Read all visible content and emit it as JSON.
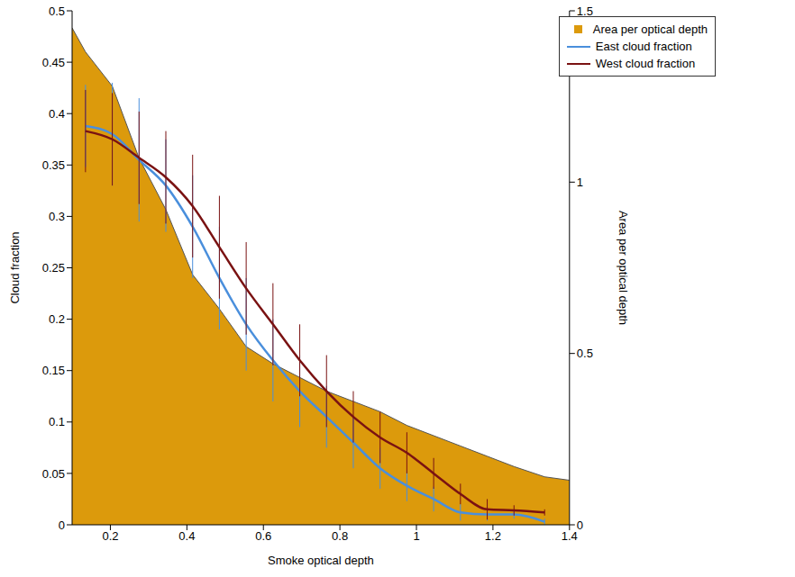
{
  "chart_data": {
    "type": "line",
    "x_label": "Smoke optical depth",
    "y_label": "Cloud fraction",
    "y2_label": "Area per optical depth",
    "x": [
      0.1,
      0.135,
      0.205,
      0.275,
      0.345,
      0.415,
      0.485,
      0.555,
      0.625,
      0.695,
      0.765,
      0.835,
      0.905,
      0.975,
      1.045,
      1.115,
      1.185,
      1.255,
      1.335,
      1.4
    ],
    "xlim": [
      0.1,
      1.4
    ],
    "xticks": [
      0.2,
      0.4,
      0.6,
      0.8,
      1,
      1.2,
      1.4
    ],
    "ylim": [
      0,
      0.5
    ],
    "yticks": [
      0,
      0.05,
      0.1,
      0.15,
      0.2,
      0.25,
      0.3,
      0.35,
      0.4,
      0.45,
      0.5
    ],
    "y2lim": [
      0,
      1.5
    ],
    "y2ticks": [
      0,
      0.5,
      1,
      1.5
    ],
    "grid": false,
    "legend": "upper right",
    "series": [
      {
        "name": "Area per optical depth",
        "type": "area",
        "axis": "y2",
        "color": "#dc9a0c",
        "values": [
          1.45,
          1.38,
          1.28,
          1.07,
          0.92,
          0.73,
          0.63,
          0.52,
          0.47,
          0.43,
          0.39,
          0.36,
          0.33,
          0.29,
          0.26,
          0.23,
          0.2,
          0.17,
          0.14,
          0.13
        ]
      },
      {
        "name": "East cloud fraction",
        "type": "line",
        "color": "#4a8fdc",
        "values": [
          null,
          0.388,
          0.38,
          0.355,
          0.33,
          0.29,
          0.24,
          0.195,
          0.16,
          0.13,
          0.105,
          0.08,
          0.055,
          0.038,
          0.025,
          0.012,
          0.01,
          0.01,
          0.003,
          null
        ],
        "errors": [
          null,
          0.04,
          0.05,
          0.06,
          0.045,
          0.05,
          0.05,
          0.045,
          0.04,
          0.035,
          0.03,
          0.025,
          0.02,
          0.015,
          0.012,
          0.008,
          0.006,
          0.004,
          0.003,
          null
        ]
      },
      {
        "name": "West cloud fraction",
        "type": "line",
        "color": "#7a1212",
        "values": [
          null,
          0.383,
          0.375,
          0.357,
          0.338,
          0.31,
          0.27,
          0.23,
          0.195,
          0.16,
          0.13,
          0.105,
          0.085,
          0.07,
          0.05,
          0.03,
          0.015,
          0.014,
          0.012,
          null
        ],
        "errors": [
          null,
          0.04,
          0.045,
          0.045,
          0.045,
          0.05,
          0.05,
          0.045,
          0.04,
          0.035,
          0.035,
          0.025,
          0.025,
          0.02,
          0.015,
          0.01,
          0.01,
          0.005,
          0.003,
          null
        ]
      }
    ]
  }
}
